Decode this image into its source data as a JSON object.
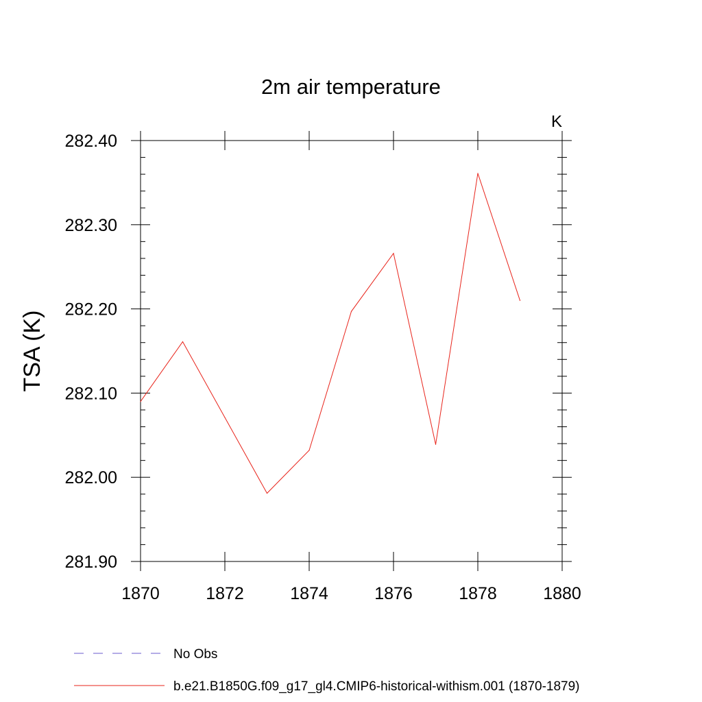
{
  "chart_data": {
    "type": "line",
    "title": "2m air temperature",
    "units_label": "K",
    "ylabel": "TSA  (K)",
    "xlabel": "",
    "xlim": [
      1870,
      1880
    ],
    "ylim": [
      281.9,
      282.4
    ],
    "x_ticks": [
      1870,
      1872,
      1874,
      1876,
      1878,
      1880
    ],
    "x_tick_labels": [
      "1870",
      "1872",
      "1874",
      "1876",
      "1878",
      "1880"
    ],
    "y_ticks": [
      281.9,
      282.0,
      282.1,
      282.2,
      282.3,
      282.4
    ],
    "y_tick_labels": [
      "281.90",
      "282.00",
      "282.10",
      "282.20",
      "282.30",
      "282.40"
    ],
    "grid": false,
    "legend_position": "bottom",
    "series": [
      {
        "name": "b.e21.B1850G.f09_g17_gl4.CMIP6-historical-withism.001 (1870-1879)",
        "color": "#e8231a",
        "dash": "solid",
        "x": [
          1870,
          1871,
          1872,
          1873,
          1874,
          1875,
          1876,
          1877,
          1878,
          1879
        ],
        "y": [
          282.09,
          282.161,
          282.071,
          281.981,
          282.032,
          282.197,
          282.266,
          282.039,
          282.361,
          282.21
        ]
      }
    ],
    "legend": [
      {
        "label": "No Obs",
        "color": "#6a5acd",
        "dash": "dashed"
      },
      {
        "label": "b.e21.B1850G.f09_g17_gl4.CMIP6-historical-withism.001 (1870-1879)",
        "color": "#e8231a",
        "dash": "solid"
      }
    ]
  }
}
